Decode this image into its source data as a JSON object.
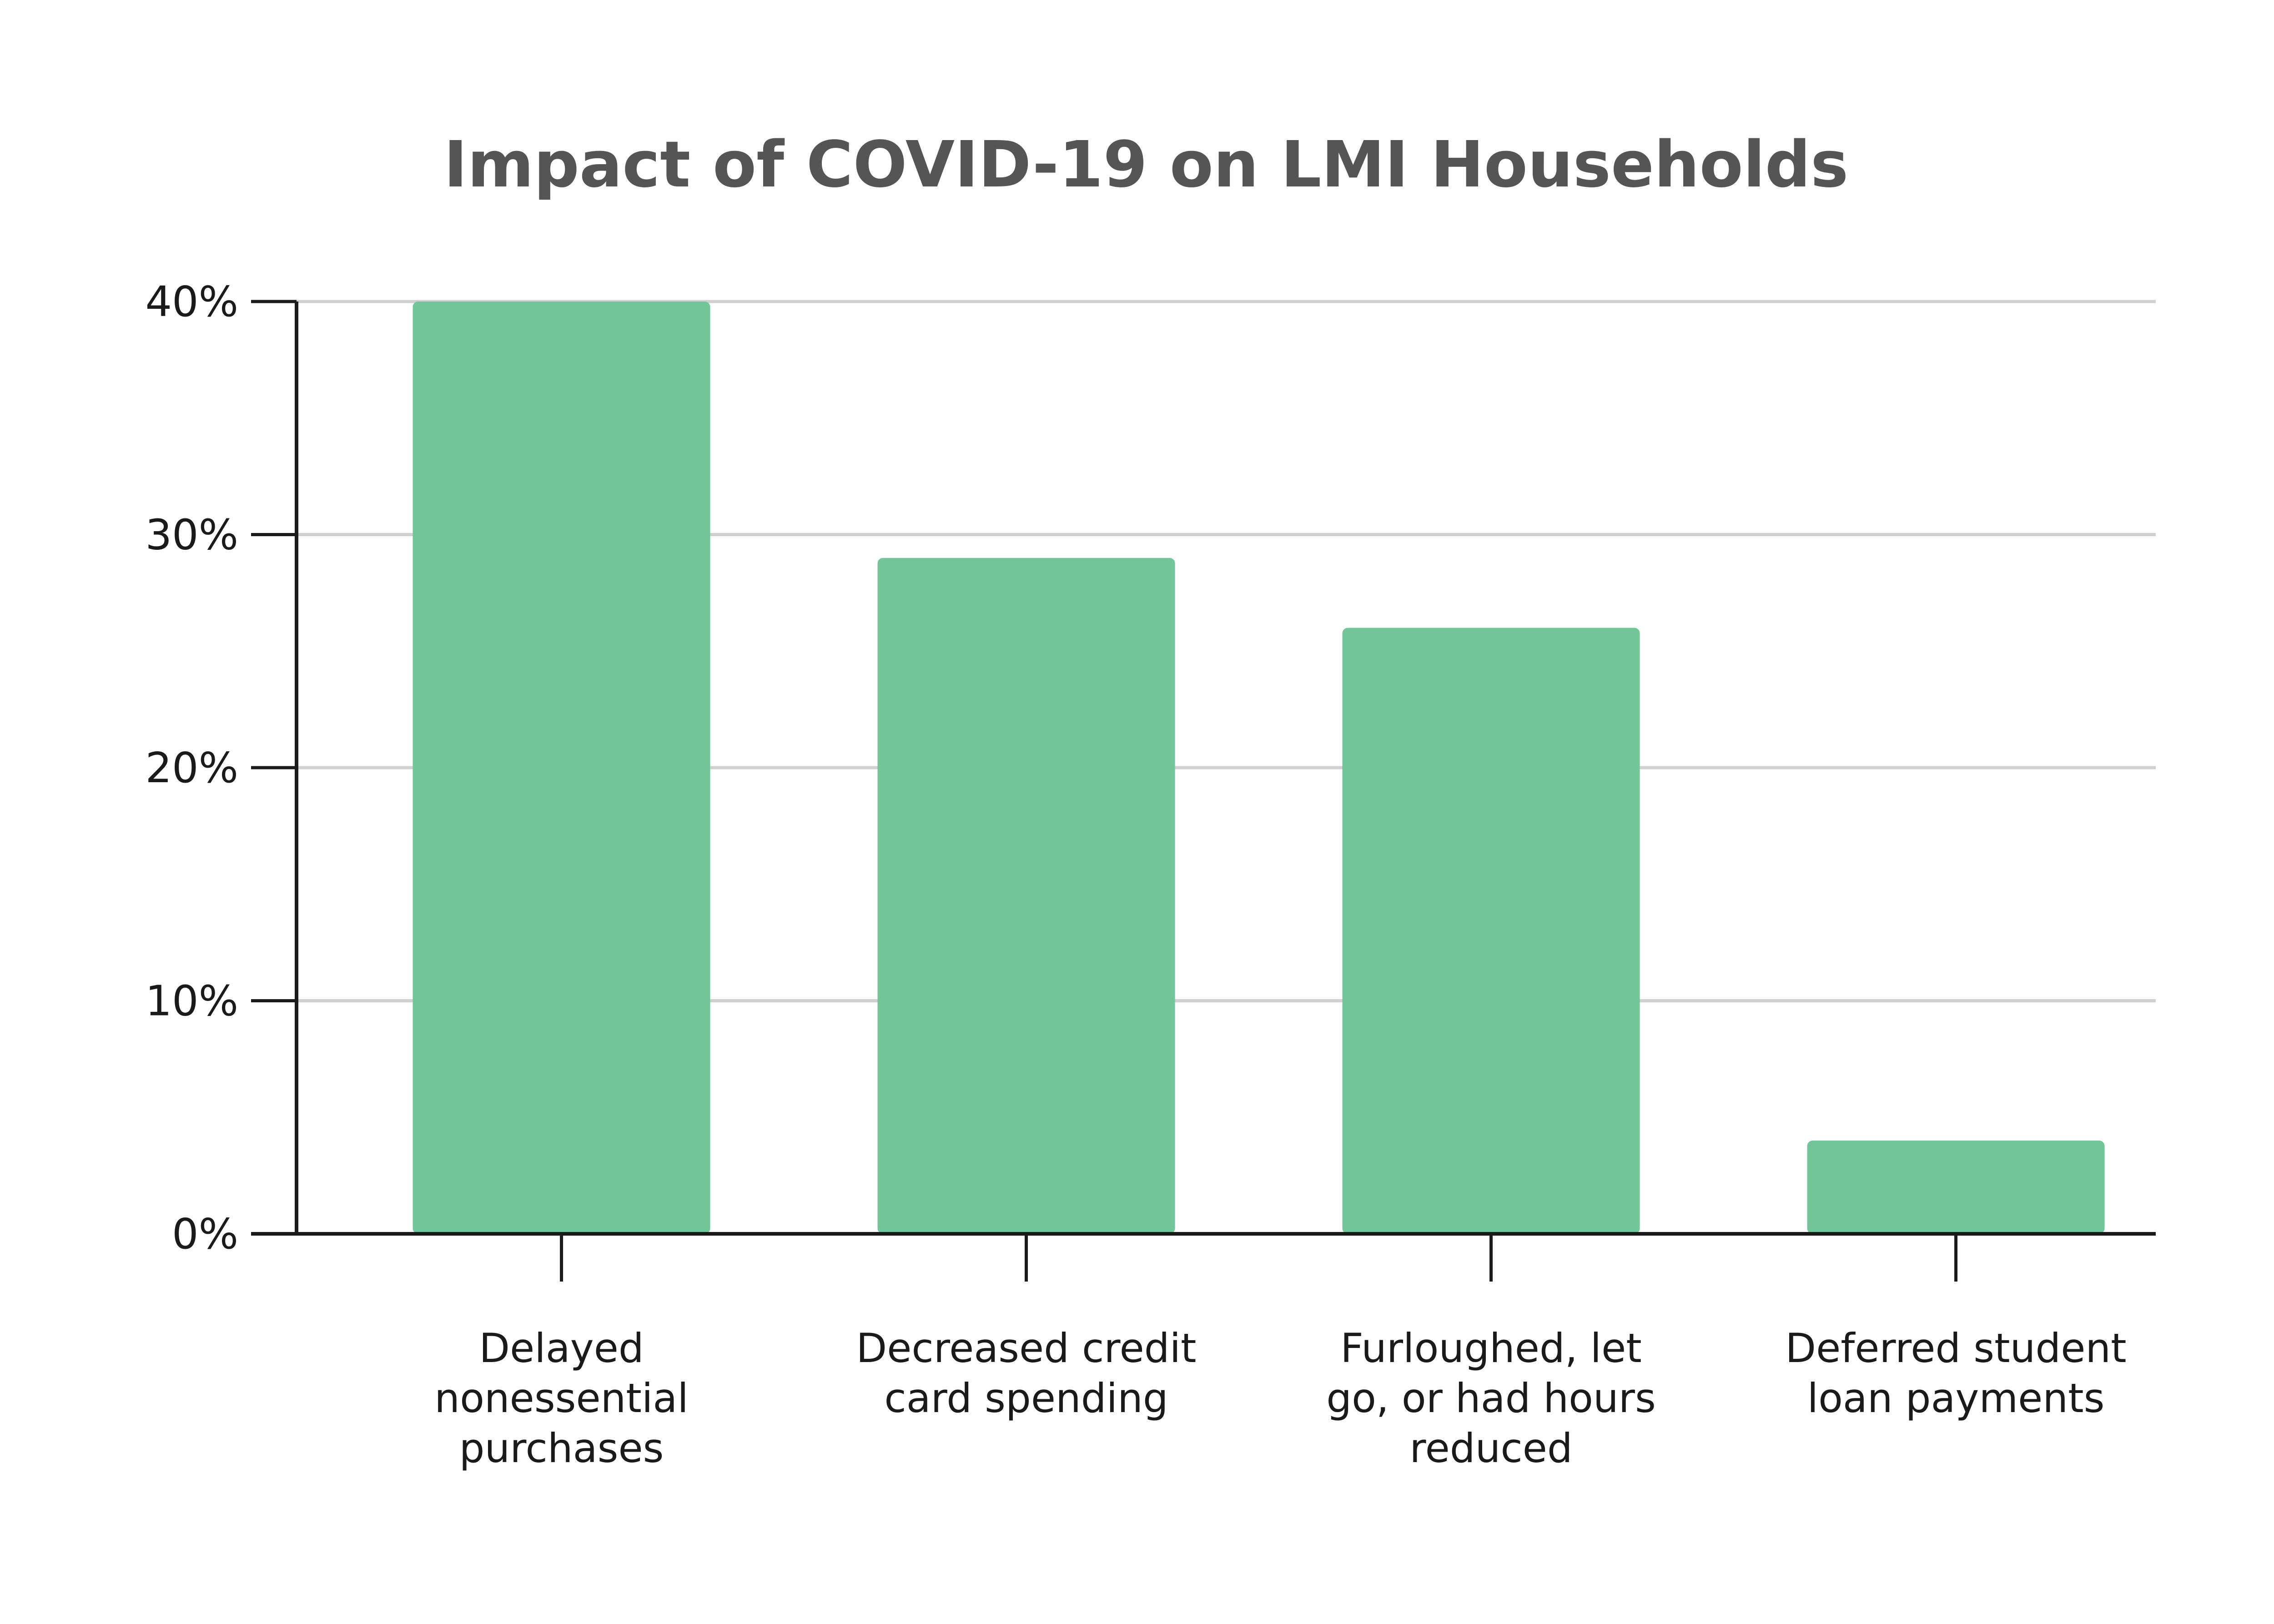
{
  "chart_data": {
    "type": "bar",
    "title": "Impact of COVID-19 on LMI Households",
    "xlabel": "",
    "ylabel": "",
    "categories": [
      [
        "Delayed",
        "nonessential",
        "purchases"
      ],
      [
        "Decreased credit",
        "card spending"
      ],
      [
        "Furloughed, let",
        "go, or had hours",
        "reduced"
      ],
      [
        "Deferred student",
        "loan payments"
      ]
    ],
    "values": [
      40,
      29,
      26,
      4
    ],
    "ylim": [
      0,
      40
    ],
    "y_ticks": [
      {
        "value": 0,
        "label": "0%"
      },
      {
        "value": 10,
        "label": "10%"
      },
      {
        "value": 20,
        "label": "20%"
      },
      {
        "value": 30,
        "label": "30%"
      },
      {
        "value": 40,
        "label": "40%"
      }
    ],
    "grid": true,
    "legend": "none",
    "colors": {
      "bar": "#74c69a",
      "grid": "#d0d0d0",
      "axis": "#1a1a1a",
      "title": "#555555"
    }
  }
}
